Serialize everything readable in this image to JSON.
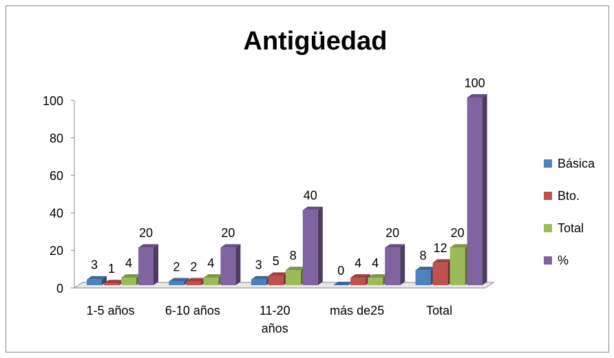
{
  "chart_data": {
    "type": "bar3d",
    "title": "Antigüedad",
    "categories": [
      "1-5 años",
      "6-10 años",
      "11-20 años",
      "más de25",
      "Total"
    ],
    "series": [
      {
        "name": "Básica",
        "color": "#4f81bd",
        "values": [
          3,
          2,
          3,
          0,
          8
        ]
      },
      {
        "name": "Bto.",
        "color": "#c0504d",
        "values": [
          1,
          2,
          5,
          4,
          12
        ]
      },
      {
        "name": "Total",
        "color": "#9bbb59",
        "values": [
          4,
          4,
          8,
          4,
          20
        ]
      },
      {
        "name": "%",
        "color": "#8064a2",
        "values": [
          20,
          20,
          40,
          20,
          100
        ]
      }
    ],
    "ylim": [
      0,
      100
    ],
    "yticks": [
      0,
      20,
      40,
      60,
      80,
      100
    ],
    "legend": "right"
  }
}
